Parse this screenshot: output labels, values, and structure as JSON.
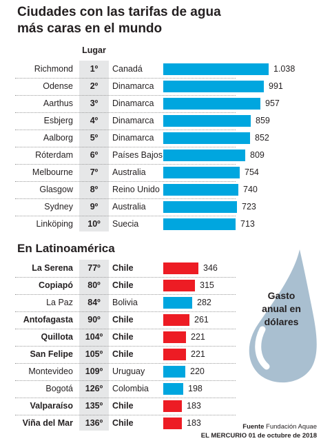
{
  "title_line1": "Ciudades con las tarifas de agua",
  "title_line2": "más caras en el mundo",
  "rank_header": "Lugar",
  "subtitle": "En Latinoamérica",
  "legend_line1": "Gasto",
  "legend_line2": "anual en",
  "legend_line3": "dólares",
  "source_label": "Fuente",
  "source_name": "Fundación Aquae",
  "credit": "EL MERCURIO 01 de octubre de 2018",
  "colors": {
    "blue": "#00a6df",
    "red": "#ed1c24",
    "drop": "#a9bfd0",
    "rank_bg": "#e6e7e8"
  },
  "chart_data": [
    {
      "type": "bar",
      "orientation": "horizontal",
      "title": "Ciudades con las tarifas de agua más caras en el mundo",
      "categories": [
        "Richmond",
        "Odense",
        "Aarthus",
        "Esbjerg",
        "Aalborg",
        "Róterdam",
        "Melbourne",
        "Glasgow",
        "Sydney",
        "Linköping"
      ],
      "ranks": [
        "1º",
        "2º",
        "3º",
        "4º",
        "5º",
        "6º",
        "7º",
        "8º",
        "9º",
        "10º"
      ],
      "countries": [
        "Canadá",
        "Dinamarca",
        "Dinamarca",
        "Dinamarca",
        "Dinamarca",
        "Países Bajos",
        "Australia",
        "Reino Unido",
        "Australia",
        "Suecia"
      ],
      "values": [
        1038,
        991,
        957,
        859,
        852,
        809,
        754,
        740,
        723,
        713
      ],
      "value_labels": [
        "1.038",
        "991",
        "957",
        "859",
        "852",
        "809",
        "754",
        "740",
        "723",
        "713"
      ],
      "bar_color": "#00a6df",
      "unit": "Gasto anual en dólares"
    },
    {
      "type": "bar",
      "orientation": "horizontal",
      "title": "En Latinoamérica",
      "categories": [
        "La Serena",
        "Copiapó",
        "La Paz",
        "Antofagasta",
        "Quillota",
        "San Felipe",
        "Montevideo",
        "Bogotá",
        "Valparaíso",
        "Viña del Mar"
      ],
      "ranks": [
        "77º",
        "80º",
        "84º",
        "90º",
        "104º",
        "105º",
        "109º",
        "126º",
        "135º",
        "136º"
      ],
      "countries": [
        "Chile",
        "Chile",
        "Bolivia",
        "Chile",
        "Chile",
        "Chile",
        "Uruguay",
        "Colombia",
        "Chile",
        "Chile"
      ],
      "values": [
        346,
        315,
        282,
        261,
        221,
        221,
        220,
        198,
        183,
        183
      ],
      "value_labels": [
        "346",
        "315",
        "282",
        "261",
        "221",
        "221",
        "220",
        "198",
        "183",
        "183"
      ],
      "highlight": [
        true,
        true,
        false,
        true,
        true,
        true,
        false,
        false,
        true,
        true
      ],
      "highlight_color": "#ed1c24",
      "bar_color": "#00a6df",
      "unit": "Gasto anual en dólares"
    }
  ]
}
